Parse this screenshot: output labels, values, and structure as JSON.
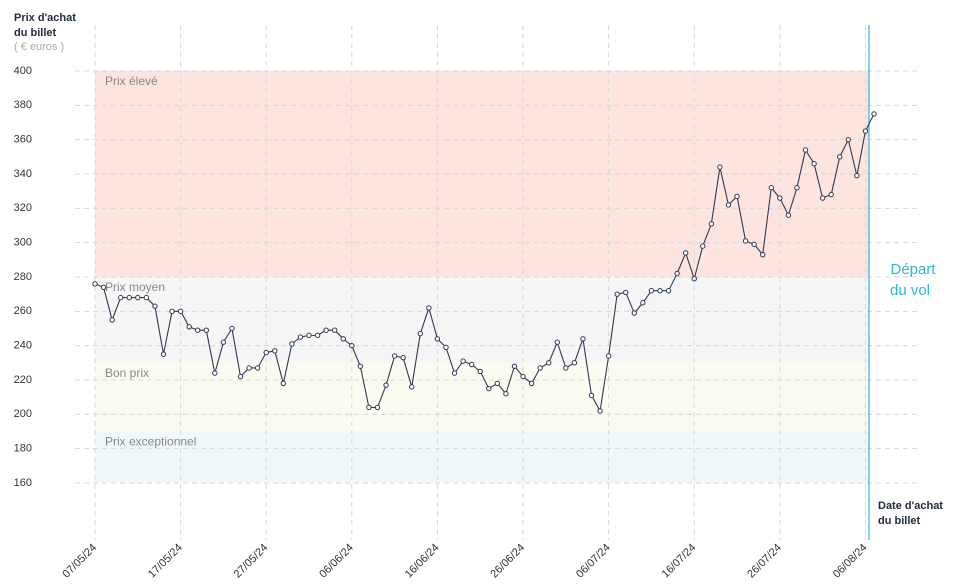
{
  "chart_data": {
    "type": "line",
    "ylabel": [
      "Prix d'achat",
      "du billet"
    ],
    "yunit": "( € euros )",
    "xlabel": [
      "Date d'achat",
      "du billet"
    ],
    "annotation": [
      "Départ",
      "du vol"
    ],
    "categories": [
      "07/05/24",
      null,
      null,
      null,
      null,
      null,
      null,
      null,
      null,
      null,
      "17/05/24",
      null,
      null,
      null,
      null,
      null,
      null,
      null,
      null,
      null,
      "27/05/24",
      null,
      null,
      null,
      null,
      null,
      null,
      null,
      null,
      null,
      "06/06/24",
      null,
      null,
      null,
      null,
      null,
      null,
      null,
      null,
      null,
      "16/06/24",
      null,
      null,
      null,
      null,
      null,
      null,
      null,
      null,
      null,
      "26/06/24",
      null,
      null,
      null,
      null,
      null,
      null,
      null,
      null,
      null,
      "06/07/24",
      null,
      null,
      null,
      null,
      null,
      null,
      null,
      null,
      null,
      "16/07/24",
      null,
      null,
      null,
      null,
      null,
      null,
      null,
      null,
      null,
      "26/07/24",
      null,
      null,
      null,
      null,
      null,
      null,
      null,
      null,
      null,
      "06/08/24",
      null
    ],
    "series": [
      {
        "color": "#2f3a52",
        "values": [
          276,
          274,
          255,
          268,
          268,
          268,
          268,
          263,
          235,
          260,
          260,
          251,
          249,
          249,
          224,
          242,
          250,
          222,
          227,
          227,
          236,
          237,
          218,
          241,
          245,
          246,
          246,
          249,
          249,
          244,
          240,
          228,
          204,
          204,
          217,
          234,
          233,
          216,
          247,
          262,
          244,
          239,
          224,
          231,
          229,
          225,
          215,
          218,
          212,
          228,
          222,
          218,
          227,
          230,
          242,
          227,
          230,
          244,
          211,
          202,
          234,
          270,
          271,
          259,
          265,
          272,
          272,
          272,
          282,
          294,
          279,
          298,
          311,
          344,
          322,
          327,
          301,
          299,
          293,
          332,
          326,
          316,
          332,
          354,
          346,
          326,
          328,
          350,
          360,
          339,
          365,
          375
        ]
      }
    ],
    "bands": [
      {
        "label": "Prix élevé",
        "from": 280,
        "to": 400,
        "color": "#fde4df"
      },
      {
        "label": "Prix moyen",
        "from": 230,
        "to": 280,
        "color": "#f6f6f7"
      },
      {
        "label": "Bon prix",
        "from": 190,
        "to": 230,
        "color": "#fbfbf1"
      },
      {
        "label": "Prix exceptionnel",
        "from": 160,
        "to": 190,
        "color": "#f1f8fc"
      }
    ],
    "ylim": [
      160,
      400
    ],
    "yticks": [
      160,
      180,
      200,
      220,
      240,
      260,
      280,
      300,
      320,
      340,
      360,
      380,
      400
    ],
    "grid": true
  }
}
